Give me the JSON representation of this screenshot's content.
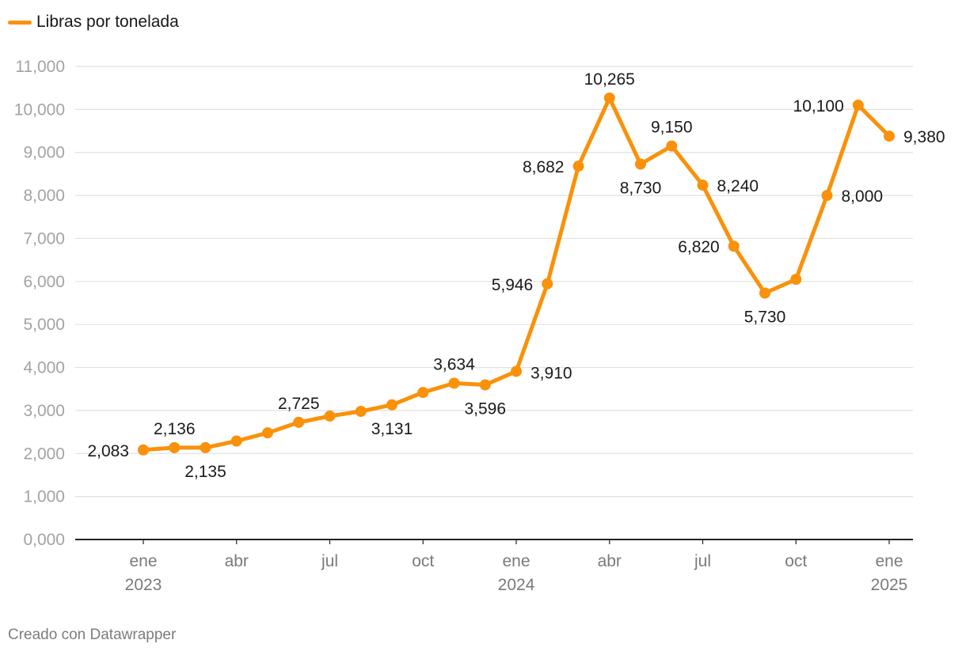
{
  "legend": {
    "label": "Libras por tonelada"
  },
  "footer": {
    "text": "Creado con Datawrapper"
  },
  "colors": {
    "series": "#fa910a",
    "grid": "#e0e0e0",
    "axis": "#222222"
  },
  "chart_data": {
    "type": "line",
    "title": "",
    "xlabel": "",
    "ylabel": "",
    "ylim": [
      0,
      11000
    ],
    "yticks": [
      "0,000",
      "1,000",
      "2,000",
      "3,000",
      "4,000",
      "5,000",
      "6,000",
      "7,000",
      "8,000",
      "9,000",
      "10,000",
      "11,000"
    ],
    "xticks": [
      {
        "i": 0,
        "label": "ene",
        "year": "2023"
      },
      {
        "i": 3,
        "label": "abr",
        "year": ""
      },
      {
        "i": 6,
        "label": "jul",
        "year": ""
      },
      {
        "i": 9,
        "label": "oct",
        "year": ""
      },
      {
        "i": 12,
        "label": "ene",
        "year": "2024"
      },
      {
        "i": 15,
        "label": "abr",
        "year": ""
      },
      {
        "i": 18,
        "label": "jul",
        "year": ""
      },
      {
        "i": 21,
        "label": "oct",
        "year": ""
      },
      {
        "i": 24,
        "label": "ene",
        "year": "2025"
      }
    ],
    "series": [
      {
        "name": "Libras por tonelada",
        "x": [
          "2023-01",
          "2023-02",
          "2023-03",
          "2023-04",
          "2023-05",
          "2023-06",
          "2023-07",
          "2023-08",
          "2023-09",
          "2023-10",
          "2023-11",
          "2023-12",
          "2024-01",
          "2024-02",
          "2024-03",
          "2024-04",
          "2024-05",
          "2024-06",
          "2024-07",
          "2024-08",
          "2024-09",
          "2024-10",
          "2024-11",
          "2024-12",
          "2025-01"
        ],
        "values": [
          2083,
          2136,
          2135,
          2290,
          2480,
          2725,
          2870,
          2980,
          3131,
          3420,
          3634,
          3596,
          3910,
          5946,
          8682,
          10265,
          8730,
          9150,
          8240,
          6820,
          5730,
          6050,
          8000,
          10100,
          9380
        ]
      }
    ],
    "annotations": [
      {
        "i": 0,
        "text": "2,083",
        "pos": "left"
      },
      {
        "i": 1,
        "text": "2,136",
        "pos": "above"
      },
      {
        "i": 2,
        "text": "2,135",
        "pos": "below"
      },
      {
        "i": 5,
        "text": "2,725",
        "pos": "above"
      },
      {
        "i": 8,
        "text": "3,131",
        "pos": "below"
      },
      {
        "i": 10,
        "text": "3,634",
        "pos": "above"
      },
      {
        "i": 11,
        "text": "3,596",
        "pos": "below"
      },
      {
        "i": 12,
        "text": "3,910",
        "pos": "right-below"
      },
      {
        "i": 13,
        "text": "5,946",
        "pos": "left"
      },
      {
        "i": 14,
        "text": "8,682",
        "pos": "left"
      },
      {
        "i": 15,
        "text": "10,265",
        "pos": "above"
      },
      {
        "i": 16,
        "text": "8,730",
        "pos": "below"
      },
      {
        "i": 17,
        "text": "9,150",
        "pos": "above"
      },
      {
        "i": 18,
        "text": "8,240",
        "pos": "right"
      },
      {
        "i": 19,
        "text": "6,820",
        "pos": "left"
      },
      {
        "i": 20,
        "text": "5,730",
        "pos": "below"
      },
      {
        "i": 22,
        "text": "8,000",
        "pos": "right"
      },
      {
        "i": 23,
        "text": "10,100",
        "pos": "left"
      },
      {
        "i": 24,
        "text": "9,380",
        "pos": "right"
      }
    ]
  }
}
